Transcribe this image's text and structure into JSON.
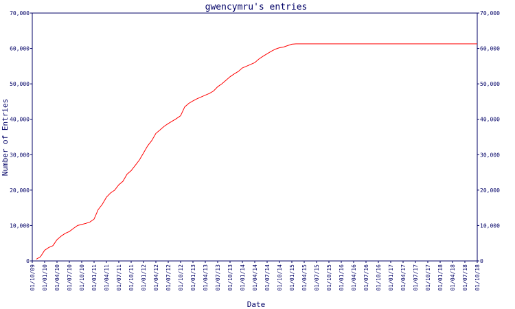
{
  "chart_data": {
    "type": "line",
    "title": "gwencymru's entries",
    "xlabel": "Date",
    "ylabel": "Number of Entries",
    "ylim": [
      0,
      70000
    ],
    "y_ticks": [
      0,
      10000,
      20000,
      30000,
      40000,
      50000,
      60000,
      70000
    ],
    "y_tick_labels": [
      "0",
      "10,000",
      "20,000",
      "30,000",
      "40,000",
      "50,000",
      "60,000",
      "70,000"
    ],
    "right_axis": true,
    "grid": false,
    "legend": "none",
    "line_color": "#ff0000",
    "axis_color": "#000066",
    "x_tick_labels": [
      "01/10/09",
      "01/01/10",
      "01/04/10",
      "01/07/10",
      "01/10/10",
      "01/01/11",
      "01/04/11",
      "01/07/11",
      "01/10/11",
      "01/01/12",
      "01/04/12",
      "01/07/12",
      "01/10/12",
      "01/01/13",
      "01/04/13",
      "01/07/13",
      "01/10/13",
      "01/01/14",
      "01/04/14",
      "01/07/14",
      "01/10/14",
      "01/01/15",
      "01/04/15",
      "01/07/15",
      "01/10/15",
      "01/01/16",
      "01/04/16",
      "01/07/16",
      "01/10/16",
      "01/01/17",
      "01/04/17",
      "01/07/17",
      "01/10/17",
      "01/01/18",
      "01/04/18",
      "01/07/18",
      "01/10/18"
    ],
    "series": [
      {
        "x": [
          "2009-11-01",
          "2009-12-01",
          "2010-01-01",
          "2010-02-01",
          "2010-03-01",
          "2010-04-01",
          "2010-05-01",
          "2010-06-01",
          "2010-07-01",
          "2010-08-01",
          "2010-09-01",
          "2010-10-01",
          "2010-11-01",
          "2010-12-01",
          "2011-01-01",
          "2011-02-01",
          "2011-03-01",
          "2011-04-01",
          "2011-05-01",
          "2011-06-01",
          "2011-07-01",
          "2011-08-01",
          "2011-09-01",
          "2011-10-01",
          "2011-11-01",
          "2011-12-01",
          "2012-01-01",
          "2012-02-01",
          "2012-03-01",
          "2012-04-01",
          "2012-05-01",
          "2012-06-01",
          "2012-07-01",
          "2012-08-01",
          "2012-09-01",
          "2012-10-01",
          "2012-11-01",
          "2012-12-01",
          "2013-01-01",
          "2013-02-01",
          "2013-03-01",
          "2013-04-01",
          "2013-05-01",
          "2013-06-01",
          "2013-07-01",
          "2013-08-01",
          "2013-09-01",
          "2013-10-01",
          "2013-11-01",
          "2013-12-01",
          "2014-01-01",
          "2014-02-01",
          "2014-03-01",
          "2014-04-01",
          "2014-05-01",
          "2014-06-01",
          "2014-07-01",
          "2014-08-01",
          "2014-09-01",
          "2014-10-01",
          "2014-11-01",
          "2014-12-01",
          "2015-01-01",
          "2015-02-01",
          "2015-03-01",
          "2015-04-01",
          "2015-05-01",
          "2015-06-01",
          "2015-07-01",
          "2015-08-01",
          "2015-09-01",
          "2015-10-01",
          "2016-01-01",
          "2016-07-01",
          "2017-01-01",
          "2017-07-01",
          "2018-01-01",
          "2018-10-01"
        ],
        "values": [
          500,
          1200,
          3000,
          3800,
          4300,
          6000,
          7000,
          7800,
          8300,
          9200,
          10000,
          10300,
          10600,
          11000,
          11800,
          14500,
          16000,
          18000,
          19200,
          20000,
          21500,
          22500,
          24500,
          25500,
          27000,
          28500,
          30500,
          32500,
          34000,
          36000,
          37000,
          38000,
          38800,
          39500,
          40200,
          41000,
          43500,
          44500,
          45200,
          45800,
          46300,
          46800,
          47300,
          48000,
          49200,
          50000,
          51000,
          52000,
          52800,
          53500,
          54500,
          55000,
          55500,
          56000,
          57000,
          57800,
          58500,
          59200,
          59800,
          60200,
          60400,
          60800,
          61200,
          61300,
          61300,
          61300,
          61300,
          61300,
          61300,
          61300,
          61300,
          61300,
          61300,
          61300,
          61300,
          61300,
          61300,
          61300
        ]
      }
    ]
  }
}
